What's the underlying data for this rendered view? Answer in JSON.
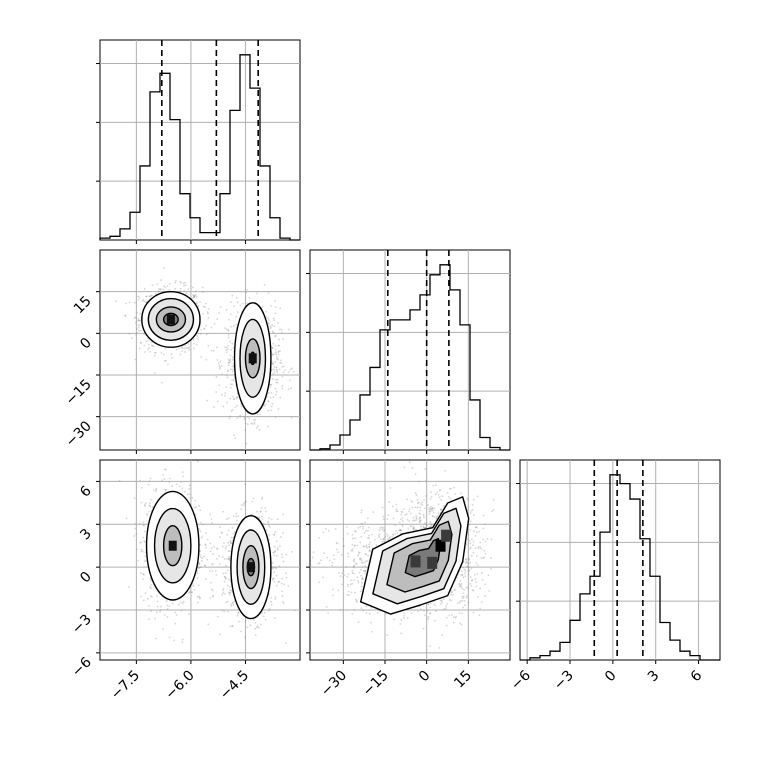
{
  "chart_data": {
    "type": "corner",
    "parameters": [
      {
        "xlim": [
          -8.5,
          -3.0
        ],
        "xticks": [
          -7.5,
          -6.0,
          -4.5
        ],
        "xticklabels": [
          "−7.5",
          "−6.0",
          "−4.5"
        ],
        "hist": {
          "bins": [
            -8.5,
            -8.225,
            -7.95,
            -7.675,
            -7.4,
            -7.125,
            -6.85,
            -6.575,
            -6.3,
            -6.025,
            -5.75,
            -5.475,
            -5.2,
            -4.925,
            -4.65,
            -4.375,
            -4.1,
            -3.825,
            -3.55,
            -3.275,
            -3.0
          ],
          "counts": [
            1,
            2,
            6,
            15,
            40,
            80,
            90,
            65,
            25,
            12,
            4,
            4,
            25,
            70,
            100,
            82,
            40,
            12,
            1,
            0
          ]
        },
        "quantiles": [
          -6.8,
          -5.3,
          -4.15
        ]
      },
      {
        "xlim": [
          -42,
          30
        ],
        "xticks": [
          -30,
          -15,
          0,
          15
        ],
        "xticklabels": [
          "−30",
          "−15",
          "0",
          "15"
        ],
        "yticks": [
          -30,
          -15,
          0,
          15
        ],
        "yticklabels": [
          "−30",
          "−15",
          "0",
          "15"
        ],
        "hist": {
          "bins": [
            -42,
            -38.4,
            -34.8,
            -31.2,
            -27.6,
            -24,
            -20.4,
            -16.8,
            -13.2,
            -9.6,
            -6,
            -2.4,
            1.2,
            4.8,
            8.4,
            12,
            15.6,
            19.2,
            22.8,
            26.4,
            30
          ],
          "counts": [
            0,
            0.5,
            2,
            6,
            12,
            22,
            33,
            48,
            52,
            52,
            56,
            62,
            70,
            74,
            64,
            50,
            20,
            5,
            1,
            0
          ]
        },
        "quantiles": [
          -14,
          0,
          8
        ]
      },
      {
        "xlim": [
          -6.5,
          7.5
        ],
        "xticks": [
          -6,
          -3,
          0,
          3,
          6
        ],
        "xticklabels": [
          "−6",
          "−3",
          "0",
          "3",
          "6"
        ],
        "yticks": [
          -6,
          -3,
          0,
          3,
          6
        ],
        "yticklabels": [
          "−6",
          "−3",
          "0",
          "3",
          "6"
        ],
        "hist": {
          "bins": [
            -6.5,
            -5.8,
            -5.1,
            -4.4,
            -3.7,
            -3.0,
            -2.3,
            -1.6,
            -0.9,
            -0.2,
            0.5,
            1.2,
            1.9,
            2.6,
            3.3,
            4.0,
            4.7,
            5.4,
            6.1,
            6.8,
            7.5
          ],
          "counts": [
            0,
            1,
            2,
            4,
            8,
            18,
            30,
            38,
            58,
            84,
            80,
            73,
            55,
            38,
            17,
            9,
            4,
            2,
            0,
            0
          ]
        },
        "quantiles": [
          -1.3,
          0.3,
          2.1
        ]
      }
    ],
    "pairs": [
      {
        "row": 1,
        "col": 0,
        "modes": [
          {
            "center": [
              -6.55,
              5
            ],
            "spread": [
              0.32,
              4.2
            ]
          },
          {
            "center": [
              -4.3,
              -10
            ],
            "spread": [
              0.28,
              7.0
            ]
          }
        ],
        "contours": [
          {
            "center": [
              -6.55,
              5
            ],
            "levels": [
              [
                0.2,
                2.2
              ],
              [
                0.4,
                4.5
              ],
              [
                0.62,
                7.5
              ],
              [
                0.8,
                10
              ]
            ]
          },
          {
            "center": [
              -4.3,
              -9
            ],
            "levels": [
              [
                0.06,
                2.2
              ],
              [
                0.2,
                7
              ],
              [
                0.35,
                14
              ],
              [
                0.5,
                20
              ]
            ]
          }
        ]
      },
      {
        "row": 2,
        "col": 0,
        "modes": [
          {
            "center": [
              -6.5,
              1.5
            ],
            "spread": [
              0.32,
              1.6
            ]
          },
          {
            "center": [
              -4.35,
              0
            ],
            "spread": [
              0.28,
              1.3
            ]
          }
        ],
        "contours": [
          {
            "center": [
              -6.5,
              1.5
            ],
            "levels": [
              [
                0.25,
                1.4
              ],
              [
                0.5,
                2.6
              ],
              [
                0.72,
                3.8
              ]
            ]
          },
          {
            "center": [
              -4.35,
              0
            ],
            "levels": [
              [
                0.1,
                0.6
              ],
              [
                0.22,
                1.5
              ],
              [
                0.38,
                2.6
              ],
              [
                0.55,
                3.6
              ]
            ]
          }
        ]
      },
      {
        "row": 2,
        "col": 1,
        "modes": [
          {
            "center": [
              4,
              1.2
            ],
            "spread": [
              6,
              1.5
            ]
          },
          {
            "center": [
              -10,
              0
            ],
            "spread": [
              9,
              1.2
            ]
          }
        ],
        "contours": [
          {
            "shape": "blob",
            "levels": [
              0.35,
              0.65,
              0.88,
              1.08
            ]
          }
        ]
      }
    ]
  }
}
